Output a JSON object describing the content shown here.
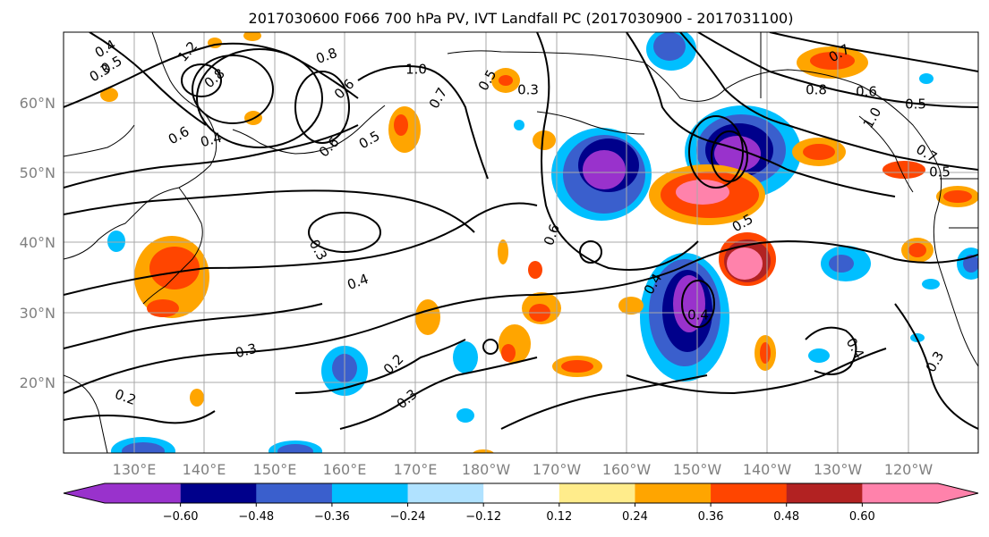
{
  "title": "2017030600 F066 700 hPa PV, IVT Landfall PC (2017030900 - 2017031100)",
  "lat_labels": [
    "60°N",
    "50°N",
    "40°N",
    "30°N",
    "20°N"
  ],
  "lon_labels": [
    "130°E",
    "140°E",
    "150°E",
    "160°E",
    "170°E",
    "180°W",
    "170°W",
    "160°W",
    "150°W",
    "140°W",
    "130°W",
    "120°W"
  ],
  "colorbar": {
    "colors": [
      "#9932cc",
      "#00008b",
      "#3a5fcd",
      "#00bfff",
      "#b0e2ff",
      "#ffffff",
      "#ffec8b",
      "#ffa500",
      "#ff4500",
      "#b22222",
      "#ff82ab"
    ],
    "tick_labels": [
      "−0.60",
      "−0.48",
      "−0.36",
      "−0.24",
      "−0.12",
      "0.12",
      "0.24",
      "0.36",
      "0.48",
      "0.60"
    ]
  },
  "contour_labels": [
    {
      "text": "0.4"
    },
    {
      "text": "0.5"
    },
    {
      "text": "1.2"
    },
    {
      "text": "0.8"
    },
    {
      "text": "0.3"
    },
    {
      "text": "1.0"
    },
    {
      "text": "0.7"
    },
    {
      "text": "0.5"
    },
    {
      "text": "0.3"
    },
    {
      "text": "0.6"
    },
    {
      "text": "0.4"
    },
    {
      "text": "0.6"
    },
    {
      "text": "0.3"
    },
    {
      "text": "0.4"
    },
    {
      "text": "0.6"
    },
    {
      "text": "0.5"
    },
    {
      "text": "0.4"
    },
    {
      "text": "0.4"
    },
    {
      "text": "0.3"
    },
    {
      "text": "0.2"
    },
    {
      "text": "0.3"
    },
    {
      "text": "0.2"
    },
    {
      "text": "0.4"
    },
    {
      "text": "0.3"
    },
    {
      "text": "0.8"
    },
    {
      "text": "0.6"
    },
    {
      "text": "0.5"
    },
    {
      "text": "1.0"
    },
    {
      "text": "0.7"
    },
    {
      "text": "0.7"
    },
    {
      "text": "0.8"
    },
    {
      "text": "0.6"
    },
    {
      "text": "0.5"
    },
    {
      "text": "0.5"
    }
  ]
}
